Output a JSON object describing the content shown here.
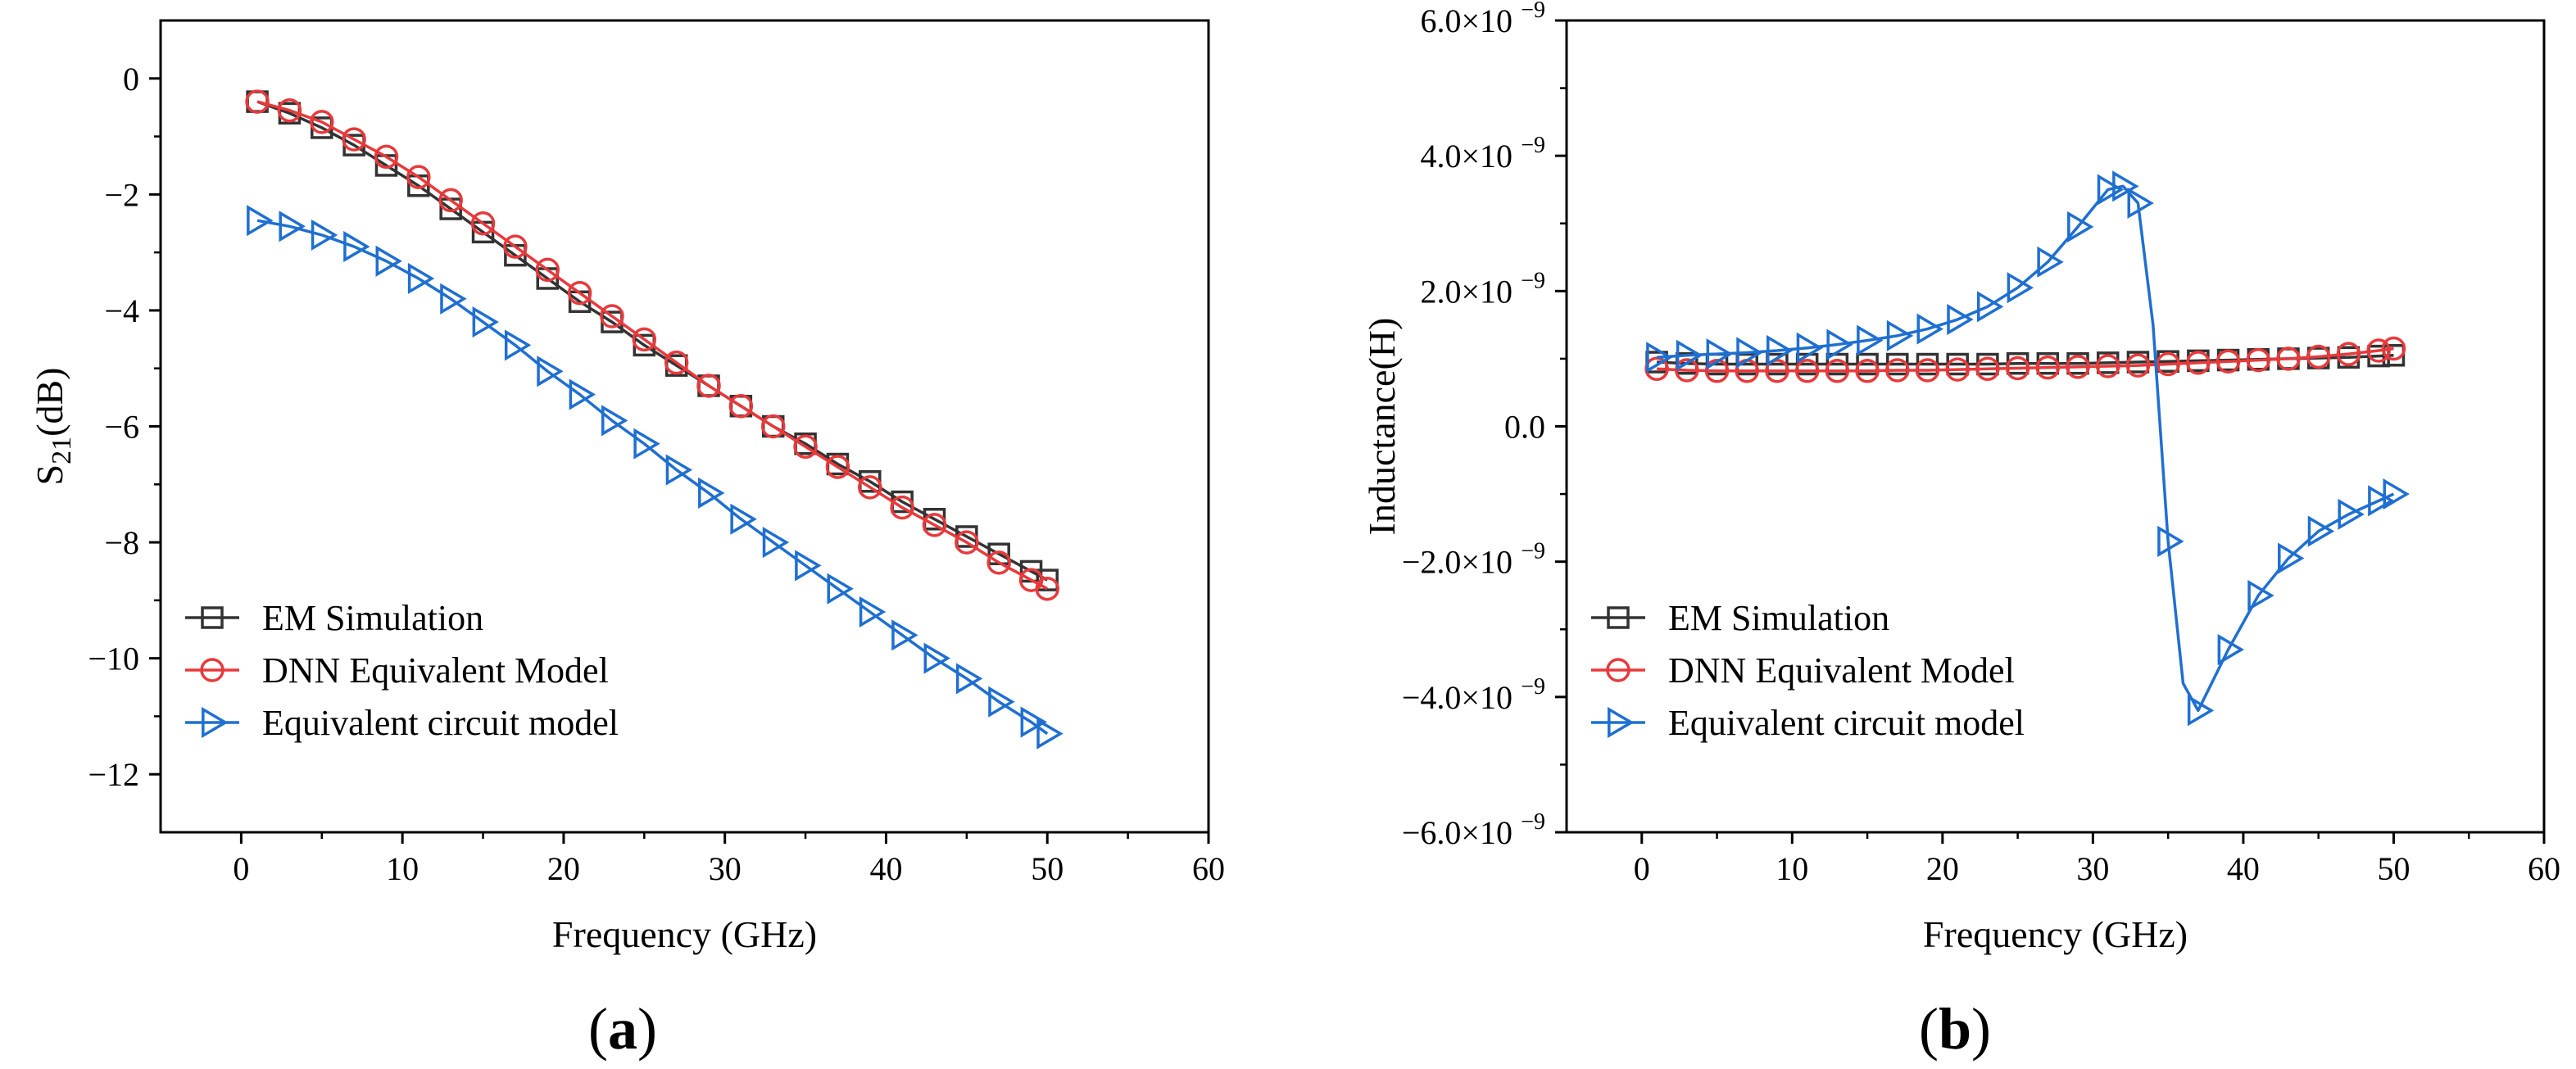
{
  "chart_data": [
    {
      "type": "line",
      "panel_label": "a",
      "xlabel": "Frequency (GHz)",
      "ylabel": "S",
      "ylabel_sub": "21",
      "ylabel_suffix": "(dB)",
      "xlim": [
        -5,
        60
      ],
      "ylim": [
        -13,
        1
      ],
      "x_ticks": [
        0,
        10,
        20,
        30,
        40,
        50,
        60
      ],
      "y_ticks": [
        0,
        -2,
        -4,
        -6,
        -8,
        -10,
        -12
      ],
      "x_tick_labels": [
        "0",
        "10",
        "20",
        "30",
        "40",
        "50",
        "60"
      ],
      "y_tick_labels": [
        "0",
        "−2",
        "−4",
        "−6",
        "−8",
        "−10",
        "−12"
      ],
      "legend_position": "bottom-left",
      "series": [
        {
          "name": "EM Simulation",
          "color": "#333333",
          "marker": "square",
          "x": [
            1,
            3,
            5,
            7,
            9,
            11,
            13,
            15,
            17,
            19,
            21,
            23,
            25,
            27,
            29,
            31,
            33,
            35,
            37,
            39,
            41,
            43,
            45,
            47,
            49,
            50
          ],
          "y": [
            -0.4,
            -0.6,
            -0.85,
            -1.15,
            -1.5,
            -1.85,
            -2.25,
            -2.65,
            -3.05,
            -3.45,
            -3.85,
            -4.2,
            -4.6,
            -4.95,
            -5.3,
            -5.65,
            -6.0,
            -6.3,
            -6.65,
            -6.95,
            -7.3,
            -7.6,
            -7.9,
            -8.2,
            -8.5,
            -8.65
          ]
        },
        {
          "name": "DNN Equivalent Model",
          "color": "#e8393b",
          "marker": "circle",
          "x": [
            1,
            3,
            5,
            7,
            9,
            11,
            13,
            15,
            17,
            19,
            21,
            23,
            25,
            27,
            29,
            31,
            33,
            35,
            37,
            39,
            41,
            43,
            45,
            47,
            49,
            50
          ],
          "y": [
            -0.4,
            -0.55,
            -0.75,
            -1.05,
            -1.35,
            -1.7,
            -2.1,
            -2.5,
            -2.9,
            -3.3,
            -3.7,
            -4.1,
            -4.5,
            -4.9,
            -5.3,
            -5.65,
            -6.0,
            -6.35,
            -6.7,
            -7.05,
            -7.4,
            -7.7,
            -8.0,
            -8.35,
            -8.65,
            -8.8
          ]
        },
        {
          "name": "Equivalent circuit model",
          "color": "#1f6fd1",
          "marker": "triangle-right",
          "x": [
            1,
            3,
            5,
            7,
            9,
            11,
            13,
            15,
            17,
            19,
            21,
            23,
            25,
            27,
            29,
            31,
            33,
            35,
            37,
            39,
            41,
            43,
            45,
            47,
            49,
            50
          ],
          "y": [
            -2.45,
            -2.55,
            -2.7,
            -2.9,
            -3.15,
            -3.45,
            -3.8,
            -4.2,
            -4.6,
            -5.05,
            -5.45,
            -5.9,
            -6.3,
            -6.75,
            -7.15,
            -7.6,
            -8.0,
            -8.4,
            -8.8,
            -9.2,
            -9.6,
            -10.0,
            -10.35,
            -10.75,
            -11.1,
            -11.3
          ]
        }
      ]
    },
    {
      "type": "line",
      "panel_label": "b",
      "xlabel": "Frequency (GHz)",
      "ylabel": "Inductance(H)",
      "xlim": [
        -5,
        60
      ],
      "ylim": [
        -6,
        6
      ],
      "x_ticks": [
        0,
        10,
        20,
        30,
        40,
        50,
        60
      ],
      "y_ticks": [
        6,
        4,
        2,
        0,
        -2,
        -4,
        -6
      ],
      "x_tick_labels": [
        "0",
        "10",
        "20",
        "30",
        "40",
        "50",
        "60"
      ],
      "y_tick_labels": [
        "6.0×10",
        "4.0×10",
        "2.0×10",
        "0.0",
        "−2.0×10",
        "−4.0×10",
        "−6.0×10"
      ],
      "y_tick_exponent": "−9",
      "value_scale": "×10^-9 H",
      "legend_position": "bottom-left",
      "series": [
        {
          "name": "EM Simulation",
          "color": "#333333",
          "marker": "square",
          "x": [
            1,
            3,
            5,
            7,
            9,
            11,
            13,
            15,
            17,
            19,
            21,
            23,
            25,
            27,
            29,
            31,
            33,
            35,
            37,
            39,
            41,
            43,
            45,
            47,
            49,
            50
          ],
          "y": [
            0.95,
            0.93,
            0.92,
            0.92,
            0.92,
            0.92,
            0.92,
            0.92,
            0.92,
            0.92,
            0.92,
            0.92,
            0.93,
            0.93,
            0.93,
            0.94,
            0.95,
            0.96,
            0.97,
            0.98,
            0.99,
            1.0,
            1.01,
            1.02,
            1.04,
            1.05
          ]
        },
        {
          "name": "DNN Equivalent Model",
          "color": "#e8393b",
          "marker": "circle",
          "x": [
            1,
            3,
            5,
            7,
            9,
            11,
            13,
            15,
            17,
            19,
            21,
            23,
            25,
            27,
            29,
            31,
            33,
            35,
            37,
            39,
            41,
            43,
            45,
            47,
            49,
            50
          ],
          "y": [
            0.85,
            0.83,
            0.82,
            0.82,
            0.82,
            0.82,
            0.82,
            0.82,
            0.83,
            0.83,
            0.84,
            0.85,
            0.86,
            0.87,
            0.88,
            0.89,
            0.9,
            0.92,
            0.94,
            0.96,
            0.98,
            1.0,
            1.03,
            1.07,
            1.12,
            1.15
          ]
        },
        {
          "name": "Equivalent circuit model",
          "color": "#1f6fd1",
          "marker": "triangle-right",
          "x": [
            1,
            3,
            5,
            7,
            9,
            11,
            13,
            15,
            17,
            19,
            21,
            23,
            25,
            27,
            29,
            31,
            32,
            33,
            34,
            35,
            36,
            37,
            39,
            41,
            43,
            45,
            47,
            49,
            50
          ],
          "y": [
            1.02,
            1.05,
            1.07,
            1.09,
            1.12,
            1.16,
            1.21,
            1.27,
            1.34,
            1.44,
            1.58,
            1.77,
            2.05,
            2.43,
            2.95,
            3.5,
            3.55,
            3.3,
            1.5,
            -1.7,
            -3.8,
            -4.2,
            -3.3,
            -2.5,
            -1.95,
            -1.55,
            -1.3,
            -1.1,
            -1.0
          ],
          "marker_x": [
            1,
            3,
            5,
            7,
            9,
            11,
            13,
            15,
            17,
            19,
            21,
            23,
            25,
            27,
            29,
            31,
            32,
            33,
            35,
            37,
            39,
            41,
            43,
            45,
            47,
            49,
            50
          ]
        }
      ]
    }
  ]
}
